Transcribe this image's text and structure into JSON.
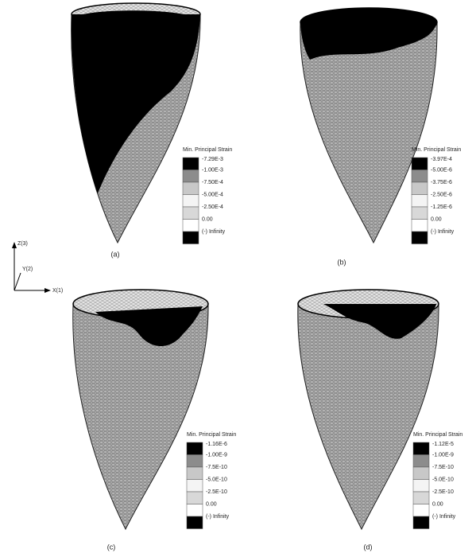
{
  "axes": {
    "z": "Z(3)",
    "y": "Y(2)",
    "x": "X(1)"
  },
  "panels": [
    {
      "caption": "(a)",
      "legend_title": "Min. Principal Strain",
      "legend_labels": [
        "-7.29E-3",
        "-1.00E-3",
        "-7.50E-4",
        "-5.00E-4",
        "-2.50E-4",
        "0.00",
        "(-) Infinity"
      ]
    },
    {
      "caption": "(b)",
      "legend_title": "Min. Principal Strain",
      "legend_labels": [
        "-3.97E-4",
        "-5.00E-6",
        "-3.75E-6",
        "-2.50E-6",
        "-1.25E-6",
        "0.00",
        "(-) Infinity"
      ]
    },
    {
      "caption": "(c)",
      "legend_title": "Min. Principal Strain",
      "legend_labels": [
        "-1.16E-6",
        "-1.00E-9",
        "-7.5E-10",
        "-5.0E-10",
        "-2.5E-10",
        "0.00",
        "(-) Infinity"
      ]
    },
    {
      "caption": "(d)",
      "legend_title": "Min. Principal Strain",
      "legend_labels": [
        "-1.12E-5",
        "-1.00E-9",
        "-7.5E-10",
        "-5.0E-10",
        "-2.5E-10",
        "0.00",
        "(-) Infinity"
      ]
    }
  ]
}
